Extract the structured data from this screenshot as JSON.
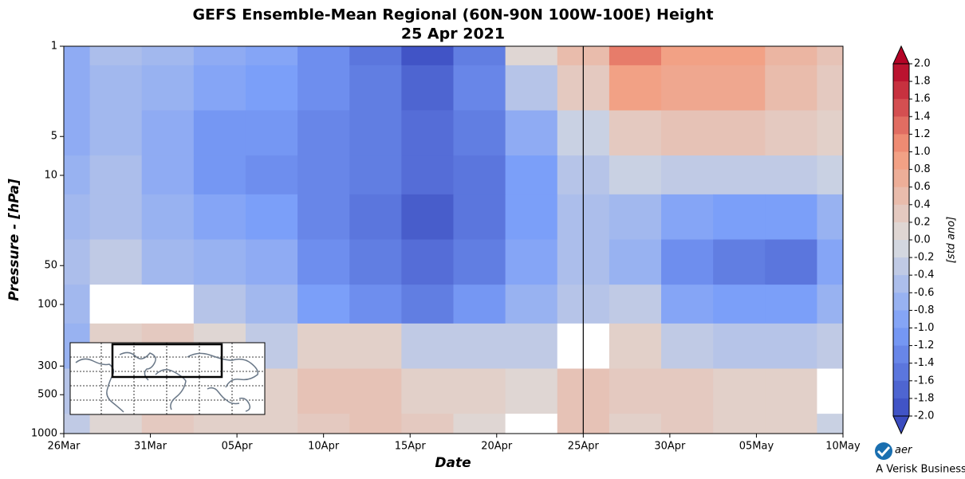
{
  "chart_data": {
    "type": "contour",
    "title": "GEFS Ensemble-Mean Regional (60N-90N 100W-100E) Height",
    "subtitle": "25 Apr 2021",
    "x_label": "Date",
    "y_label": "Pressure - [hPa]",
    "colorbar_label": "[std ano]",
    "y_log": true,
    "xlim": [
      0,
      45
    ],
    "ylim": [
      1000,
      1
    ],
    "xticks": [
      {
        "value": 0,
        "label": "26Mar"
      },
      {
        "value": 5,
        "label": "31Mar"
      },
      {
        "value": 10,
        "label": "05Apr"
      },
      {
        "value": 15,
        "label": "10Apr"
      },
      {
        "value": 20,
        "label": "15Apr"
      },
      {
        "value": 25,
        "label": "20Apr"
      },
      {
        "value": 30,
        "label": "25Apr"
      },
      {
        "value": 35,
        "label": "30Apr"
      },
      {
        "value": 40,
        "label": "05May"
      },
      {
        "value": 45,
        "label": "10May"
      }
    ],
    "yticks": [
      1,
      5,
      10,
      50,
      100,
      300,
      500,
      1000
    ],
    "vline": 30,
    "x": [
      0,
      3,
      6,
      9,
      12,
      15,
      18,
      21,
      24,
      27,
      30,
      33,
      36,
      39,
      42,
      45
    ],
    "y": [
      1,
      2,
      5,
      10,
      20,
      50,
      100,
      200,
      500,
      1000
    ],
    "z": [
      [
        -0.8,
        -0.5,
        -0.6,
        -0.8,
        -0.9,
        -1.2,
        -1.5,
        -1.9,
        -1.4,
        0.1,
        0.5,
        1.2,
        0.9,
        0.9,
        0.6,
        0.4
      ],
      [
        -0.8,
        -0.6,
        -0.7,
        -0.9,
        -1.0,
        -1.2,
        -1.4,
        -1.7,
        -1.3,
        -0.4,
        0.3,
        0.9,
        0.8,
        0.8,
        0.5,
        0.3
      ],
      [
        -0.8,
        -0.6,
        -0.8,
        -1.1,
        -1.1,
        -1.3,
        -1.4,
        -1.6,
        -1.4,
        -0.8,
        -0.2,
        0.3,
        0.4,
        0.4,
        0.3,
        0.2
      ],
      [
        -0.7,
        -0.5,
        -0.8,
        -1.1,
        -1.2,
        -1.3,
        -1.4,
        -1.6,
        -1.5,
        -1.0,
        -0.4,
        -0.2,
        -0.3,
        -0.3,
        -0.3,
        -0.2
      ],
      [
        -0.6,
        -0.5,
        -0.7,
        -0.9,
        -1.0,
        -1.3,
        -1.5,
        -1.8,
        -1.5,
        -1.0,
        -0.5,
        -0.6,
        -0.9,
        -1.0,
        -1.0,
        -0.7
      ],
      [
        -0.5,
        -0.3,
        -0.6,
        -0.7,
        -0.8,
        -1.2,
        -1.4,
        -1.6,
        -1.4,
        -0.9,
        -0.5,
        -0.7,
        -1.2,
        -1.4,
        -1.5,
        -0.9
      ],
      [
        -0.6,
        0.0,
        0.0,
        -0.4,
        -0.6,
        -1.0,
        -1.2,
        -1.4,
        -1.1,
        -0.7,
        -0.4,
        -0.3,
        -0.9,
        -1.0,
        -1.0,
        -0.7
      ],
      [
        -0.7,
        0.2,
        0.3,
        0.1,
        -0.3,
        0.2,
        0.2,
        -0.3,
        -0.3,
        -0.3,
        0.0,
        0.2,
        -0.3,
        -0.4,
        -0.4,
        -0.3
      ],
      [
        -0.4,
        0.3,
        0.4,
        0.3,
        0.2,
        0.4,
        0.4,
        0.2,
        0.2,
        0.1,
        0.4,
        0.3,
        0.3,
        0.2,
        0.2,
        0.0
      ],
      [
        -0.3,
        0.1,
        0.3,
        0.2,
        0.2,
        0.3,
        0.4,
        0.3,
        0.1,
        0.0,
        0.4,
        0.2,
        0.3,
        0.2,
        0.2,
        -0.2
      ]
    ],
    "clim": [
      -2,
      2
    ],
    "cticks": [
      {
        "value": 2,
        "label": "2.0"
      },
      {
        "value": 1.8,
        "label": "1.8"
      },
      {
        "value": 1.6,
        "label": "1.6"
      },
      {
        "value": 1.4,
        "label": "1.4"
      },
      {
        "value": 1.2,
        "label": "1.2"
      },
      {
        "value": 1,
        "label": "1.0"
      },
      {
        "value": 0.8,
        "label": "0.8"
      },
      {
        "value": 0.6,
        "label": "0.6"
      },
      {
        "value": 0.4,
        "label": "0.4"
      },
      {
        "value": 0.2,
        "label": "0.2"
      },
      {
        "value": 0,
        "label": "0.0"
      },
      {
        "value": -0.2,
        "label": "-0.2"
      },
      {
        "value": -0.4,
        "label": "-0.4"
      },
      {
        "value": -0.6,
        "label": "-0.6"
      },
      {
        "value": -0.8,
        "label": "-0.8"
      },
      {
        "value": -1,
        "label": "-1.0"
      },
      {
        "value": -1.2,
        "label": "-1.2"
      },
      {
        "value": -1.4,
        "label": "-1.4"
      },
      {
        "value": -1.6,
        "label": "-1.6"
      },
      {
        "value": -1.8,
        "label": "-1.8"
      },
      {
        "value": -2,
        "label": "-2.0"
      }
    ],
    "logo": {
      "text": "aer",
      "tagline": "A Verisk Business"
    }
  }
}
